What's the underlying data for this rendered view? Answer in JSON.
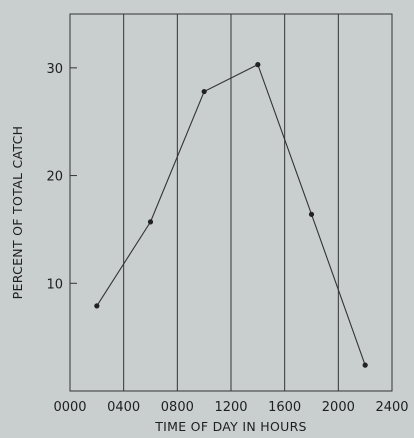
{
  "chart_data": {
    "type": "line",
    "title": "",
    "xlabel": "TIME OF DAY IN HOURS",
    "ylabel": "PERCENT OF TOTAL CATCH",
    "xlim": [
      0,
      2400
    ],
    "ylim": [
      0,
      35
    ],
    "x_ticks": [
      0,
      400,
      800,
      1200,
      1600,
      2000,
      2400
    ],
    "x_tick_labels": [
      "0000",
      "0400",
      "0800",
      "1200",
      "1600",
      "2000",
      "2400"
    ],
    "y_ticks": [
      10,
      20,
      30
    ],
    "y_tick_labels": [
      "10",
      "20",
      "30"
    ],
    "vertical_grid": true,
    "horizontal_grid": false,
    "series": [
      {
        "x": [
          200,
          600,
          1000,
          1400,
          1800,
          2200
        ],
        "y": [
          7.9,
          15.7,
          27.8,
          30.3,
          16.4,
          2.4
        ]
      }
    ],
    "colors": {
      "line": "#333333",
      "frame": "#333333",
      "background": "#c9cfcf"
    }
  }
}
